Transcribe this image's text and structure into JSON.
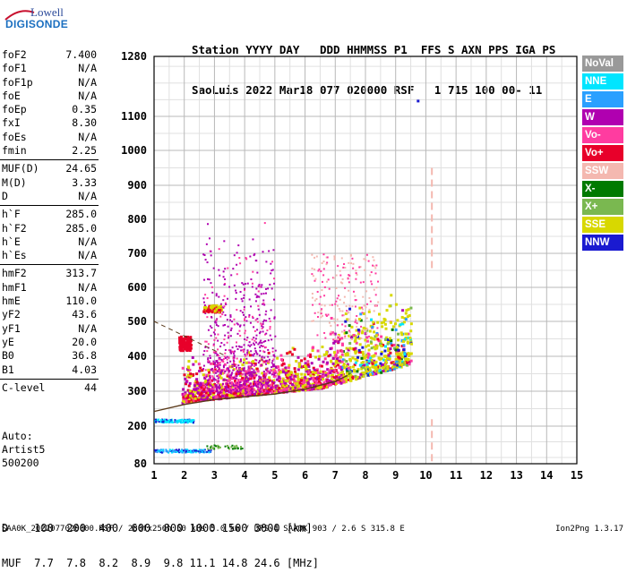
{
  "logo": {
    "line1": "Lowell",
    "line2": "DIGISONDE"
  },
  "header": {
    "line1": "Station YYYY DAY   DDD HHMMSS P1  FFS S AXN PPS IGA PS",
    "line2": "SaoLuis 2022 Mar18 077 020000 RSF   1 715 100 00- 11"
  },
  "params": [
    {
      "k": "foF2",
      "v": "7.400"
    },
    {
      "k": "foF1",
      "v": "N/A"
    },
    {
      "k": "foF1p",
      "v": "N/A"
    },
    {
      "k": "foE",
      "v": "N/A"
    },
    {
      "k": "foEp",
      "v": "0.35"
    },
    {
      "k": "fxI",
      "v": "8.30"
    },
    {
      "k": "foEs",
      "v": "N/A"
    },
    {
      "k": "fmin",
      "v": "2.25"
    },
    {
      "k": "MUF(D)",
      "v": "24.65"
    },
    {
      "k": "M(D)",
      "v": "3.33"
    },
    {
      "k": "D",
      "v": "N/A"
    },
    {
      "k": "h`F",
      "v": "285.0"
    },
    {
      "k": "h`F2",
      "v": "285.0"
    },
    {
      "k": "h`E",
      "v": "N/A"
    },
    {
      "k": "h`Es",
      "v": "N/A"
    },
    {
      "k": "hmF2",
      "v": "313.7"
    },
    {
      "k": "hmF1",
      "v": "N/A"
    },
    {
      "k": "hmE",
      "v": "110.0"
    },
    {
      "k": "yF2",
      "v": "43.6"
    },
    {
      "k": "yF1",
      "v": "N/A"
    },
    {
      "k": "yE",
      "v": "20.0"
    },
    {
      "k": "B0",
      "v": "36.8"
    },
    {
      "k": "B1",
      "v": "4.03"
    },
    {
      "k": "C-level",
      "v": "44"
    }
  ],
  "auto": {
    "line1": "Auto:",
    "line2": "Artist5",
    "line3": "500200"
  },
  "legend": [
    {
      "label": "NoVal",
      "color": "#999999"
    },
    {
      "label": "NNE",
      "color": "#00e5ff"
    },
    {
      "label": "E",
      "color": "#2aa0ff"
    },
    {
      "label": "W",
      "color": "#b000b0"
    },
    {
      "label": "Vo-",
      "color": "#ff3ca0"
    },
    {
      "label": "Vo+",
      "color": "#e8002a"
    },
    {
      "label": "SSW",
      "color": "#f4b8b0"
    },
    {
      "label": "X-",
      "color": "#007a00"
    },
    {
      "label": "X+",
      "color": "#7ab850"
    },
    {
      "label": "SSE",
      "color": "#d8d800"
    },
    {
      "label": "NNW",
      "color": "#1a1ad0"
    }
  ],
  "footer": {
    "line1": "D    100  200  400  600  800 1000 1500 3000 [km]",
    "line2": "MUF  7.7  7.8  8.2  8.9  9.8 11.1 14.8 24.6 [MHz]"
  },
  "bottom": "SAA0K_2022077020000.RSF / 280fx256h 50 kHs 5.0 km / DPS-4 SAA0K 903 / 2.6 S 315.8 E",
  "version": "Ion2Png 1.3.17",
  "chart_data": {
    "type": "scatter",
    "xlim": [
      1,
      15
    ],
    "ylim": [
      80,
      1280
    ],
    "xticks": [
      1,
      2,
      3,
      4,
      5,
      6,
      7,
      8,
      9,
      10,
      11,
      12,
      13,
      14,
      15
    ],
    "yticks": [
      80,
      200,
      300,
      400,
      500,
      600,
      700,
      800,
      900,
      1000,
      1100,
      1280
    ],
    "grid": true,
    "legend_position": "right",
    "trace": [
      [
        1.0,
        242
      ],
      [
        2.0,
        262
      ],
      [
        3.0,
        276
      ],
      [
        4.0,
        284
      ],
      [
        5.0,
        292
      ],
      [
        6.0,
        306
      ],
      [
        7.0,
        328
      ],
      [
        7.4,
        345
      ]
    ],
    "vline_freq": 10.2
  }
}
